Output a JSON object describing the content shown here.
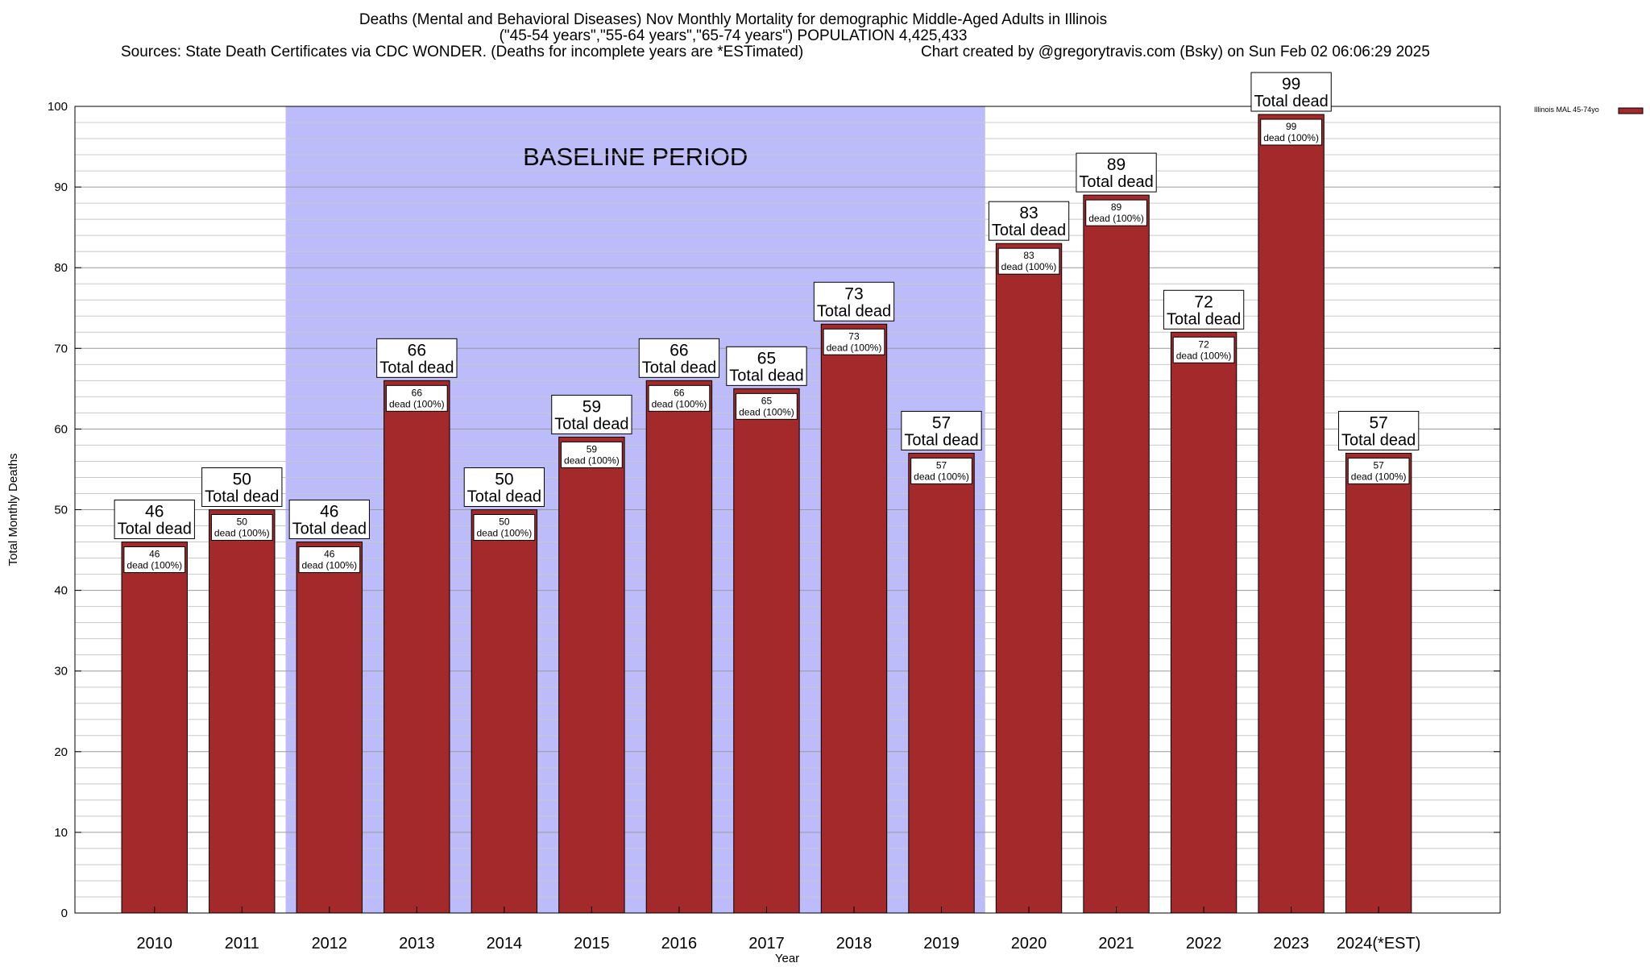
{
  "colors": {
    "bar": "#a3292b",
    "baseline_fill": "#bcbcfb",
    "gridline": "#c8c8c8"
  },
  "chart_data": {
    "type": "bar",
    "title_lines": [
      "Deaths (Mental and Behavioral Diseases) Nov Monthly Mortality for demographic Middle-Aged Adults in Illinois",
      "(\"45-54 years\",\"55-64 years\",\"65-74 years\") POPULATION 4,425,433",
      "Sources: State Death Certificates via CDC WONDER. (Deaths for incomplete years are *ESTimated)",
      "Chart created by @gregorytravis.com (Bsky) on Sun Feb 02 06:06:29 2025"
    ],
    "xlabel": "Year",
    "ylabel": "Total Monthly Deaths",
    "ylim": [
      0,
      100
    ],
    "yticks": [
      0,
      10,
      20,
      30,
      40,
      50,
      60,
      70,
      80,
      90,
      100
    ],
    "grid": "horizontal",
    "categories": [
      "2010",
      "2011",
      "2012",
      "2013",
      "2014",
      "2015",
      "2016",
      "2017",
      "2018",
      "2019",
      "2020",
      "2021",
      "2022",
      "2023",
      "2024(*EST)"
    ],
    "series": [
      {
        "name": "Illinois MAL 45-74yo",
        "values": [
          46,
          50,
          46,
          66,
          50,
          59,
          66,
          65,
          73,
          57,
          83,
          89,
          72,
          99,
          57
        ]
      }
    ],
    "data_label_top": "Total dead",
    "data_label_inner": "dead (100%)",
    "annotation": {
      "text": "BASELINE PERIOD",
      "from_category": "2012",
      "to_category": "2019"
    },
    "legend_placement": "right"
  }
}
